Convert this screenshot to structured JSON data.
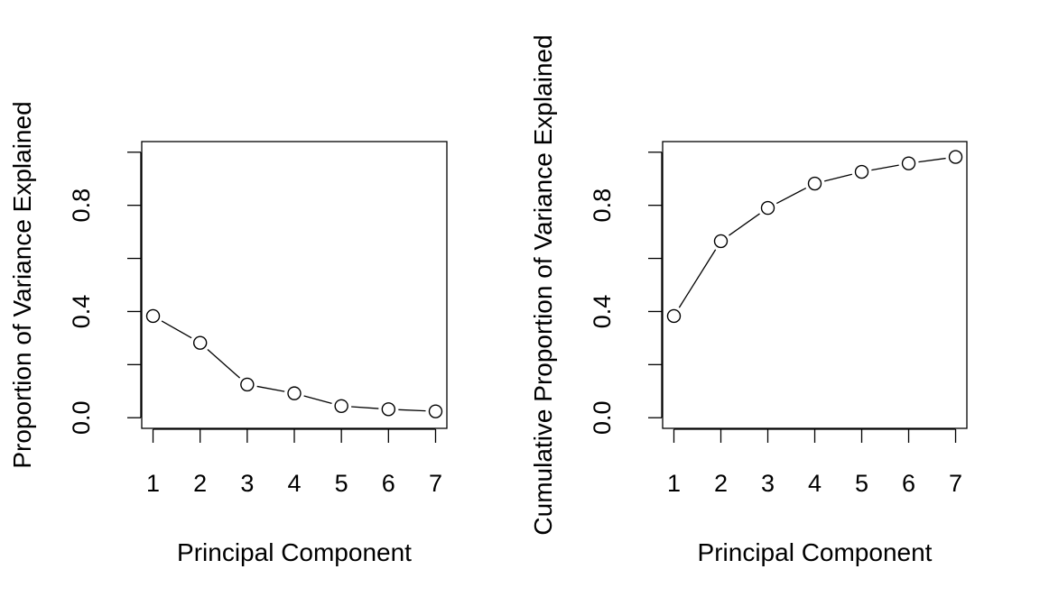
{
  "chart_data": [
    {
      "type": "line",
      "markers": "open-circle",
      "line_style": "dashed-gaps",
      "xlabel": "Principal Component",
      "ylabel": "Proportion of Variance Explained",
      "x": [
        1,
        2,
        3,
        4,
        5,
        6,
        7
      ],
      "values": [
        0.383,
        0.282,
        0.125,
        0.092,
        0.044,
        0.032,
        0.024
      ],
      "xlim": [
        0.76,
        7.24
      ],
      "ylim": [
        -0.04,
        1.04
      ],
      "x_ticks": [
        "1",
        "2",
        "3",
        "4",
        "5",
        "6",
        "7"
      ],
      "y_ticks": [
        0.0,
        0.2,
        0.4,
        0.6,
        0.8,
        1.0
      ],
      "y_tick_labels": [
        "0.0",
        "",
        "0.4",
        "",
        "0.8",
        ""
      ]
    },
    {
      "type": "line",
      "markers": "open-circle",
      "line_style": "dashed-gaps",
      "xlabel": "Principal Component",
      "ylabel": "Cumulative Proportion of Variance Explained",
      "x": [
        1,
        2,
        3,
        4,
        5,
        6,
        7
      ],
      "values": [
        0.383,
        0.665,
        0.79,
        0.882,
        0.926,
        0.958,
        0.982
      ],
      "xlim": [
        0.76,
        7.24
      ],
      "ylim": [
        -0.04,
        1.04
      ],
      "x_ticks": [
        "1",
        "2",
        "3",
        "4",
        "5",
        "6",
        "7"
      ],
      "y_ticks": [
        0.0,
        0.2,
        0.4,
        0.6,
        0.8,
        1.0
      ],
      "y_tick_labels": [
        "0.0",
        "",
        "0.4",
        "",
        "0.8",
        ""
      ]
    }
  ]
}
